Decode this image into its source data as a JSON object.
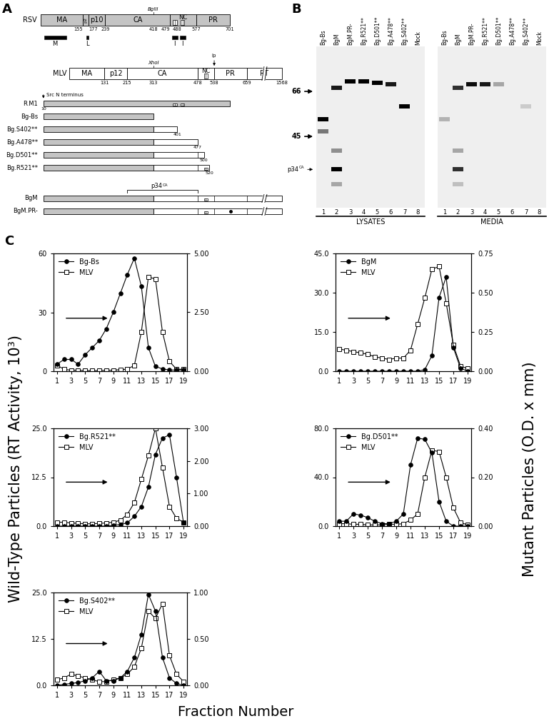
{
  "panel_A": {
    "label": "A",
    "construct_start": 10,
    "src_note": "Src N terminus",
    "rsv": {
      "name": "RSV",
      "domains": [
        {
          "name": "MA",
          "start": 1,
          "end": 155
        },
        {
          "name": "p2",
          "start": 155,
          "end": 177
        },
        {
          "name": "p10",
          "start": 177,
          "end": 239
        },
        {
          "name": "CA",
          "start": 239,
          "end": 479
        },
        {
          "name": "NC",
          "start": 479,
          "end": 577
        },
        {
          "name": "PR",
          "start": 577,
          "end": 701
        }
      ],
      "numbers": [
        155,
        177,
        239,
        418,
        479,
        488,
        577,
        701
      ],
      "site": {
        "name": "BglII",
        "position": 418
      },
      "zinc_fingers": [
        [
          490,
          505
        ],
        [
          518,
          533
        ]
      ],
      "regions": [
        {
          "name": "M",
          "start": 12,
          "end": 95
        },
        {
          "name": "L",
          "start": 170,
          "end": 178
        },
        {
          "name": "I",
          "start": 486,
          "end": 508
        },
        {
          "name": "I",
          "start": 516,
          "end": 536
        }
      ]
    },
    "mlv": {
      "name": "MLV",
      "domains": [
        {
          "name": "MA",
          "start": 1,
          "end": 131
        },
        {
          "name": "p12",
          "start": 131,
          "end": 215
        },
        {
          "name": "CA",
          "start": 215,
          "end": 478
        },
        {
          "name": "NC",
          "start": 478,
          "end": 538
        },
        {
          "name": "PR",
          "start": 538,
          "end": 659
        },
        {
          "name": "RT",
          "start": 659,
          "end": 1568
        }
      ],
      "numbers": [
        131,
        215,
        313,
        478,
        538,
        659,
        1568
      ],
      "site": {
        "name": "XhoI",
        "position": 313
      },
      "cleavage": {
        "name": "lp",
        "position": 538
      },
      "zinc_fingers": [
        [
          500,
          514
        ]
      ]
    },
    "p34": {
      "text": "p34",
      "sup": "CA",
      "start": 215,
      "end": 478
    },
    "constructs": [
      {
        "name": "R.M1",
        "rsv_end": 701,
        "mlv_end": null,
        "print_end": false
      },
      {
        "name": "Bg-Bs",
        "rsv_end": 418,
        "mlv_end": null,
        "print_end": false
      },
      {
        "name": "Bg.S402**",
        "rsv_end": 418,
        "mlv_end": 401,
        "print_end": true
      },
      {
        "name": "Bg.A478**",
        "rsv_end": 418,
        "mlv_end": 477,
        "print_end": true
      },
      {
        "name": "Bg.D501**",
        "rsv_end": 418,
        "mlv_end": 500,
        "print_end": true
      },
      {
        "name": "Bg.R521**",
        "rsv_end": 418,
        "mlv_end": 520,
        "print_end": true
      },
      {
        "name": "BgM",
        "rsv_end": 418,
        "mlv_end": 1568,
        "print_end": false
      },
      {
        "name": "BgM.PR-",
        "rsv_end": 418,
        "mlv_end": 1568,
        "print_end": false,
        "mutation": "PR"
      }
    ]
  },
  "panel_B": {
    "label": "B",
    "lanes": [
      "Bg-Bs",
      "BgM",
      "BgM.PR-",
      "Bg.R521**",
      "Bg.D501**",
      "Bg.A478**",
      "Bg.S402**",
      "Mock"
    ],
    "lane_numbers": [
      1,
      2,
      3,
      4,
      5,
      6,
      7,
      8
    ],
    "mw_range": [
      25,
      95
    ],
    "markers": [
      {
        "value": 66,
        "label": "66"
      },
      {
        "value": 45,
        "label": "45"
      },
      {
        "value": 34,
        "label": {
          "text": "p34",
          "sup": "CA"
        }
      }
    ],
    "gels": [
      {
        "name": "LYSATES",
        "bands": [
          [
            {
              "mw": 52,
              "intensity": 1.0
            },
            {
              "mw": 47,
              "intensity": 0.5
            }
          ],
          [
            {
              "mw": 68,
              "intensity": 0.9
            },
            {
              "mw": 40,
              "intensity": 0.4
            },
            {
              "mw": 34,
              "intensity": 1.0
            },
            {
              "mw": 30,
              "intensity": 0.3
            }
          ],
          [
            {
              "mw": 72,
              "intensity": 1.0
            }
          ],
          [
            {
              "mw": 72,
              "intensity": 1.0
            }
          ],
          [
            {
              "mw": 71,
              "intensity": 1.0
            }
          ],
          [
            {
              "mw": 70,
              "intensity": 0.9
            }
          ],
          [
            {
              "mw": 58,
              "intensity": 1.0
            }
          ],
          []
        ]
      },
      {
        "name": "MEDIA",
        "bands": [
          [
            {
              "mw": 52,
              "intensity": 0.25
            }
          ],
          [
            {
              "mw": 68,
              "intensity": 0.8
            },
            {
              "mw": 40,
              "intensity": 0.3
            },
            {
              "mw": 34,
              "intensity": 0.8
            },
            {
              "mw": 30,
              "intensity": 0.2
            }
          ],
          [
            {
              "mw": 70,
              "intensity": 0.95
            }
          ],
          [
            {
              "mw": 70,
              "intensity": 0.9
            }
          ],
          [
            {
              "mw": 70,
              "intensity": 0.3
            }
          ],
          [],
          [
            {
              "mw": 58,
              "intensity": 0.15
            }
          ],
          []
        ]
      }
    ]
  },
  "panel_C": {
    "label": "C",
    "ylabel_left": "Wild-Type Particles (RT Activity, 10³)",
    "ylabel_right": "Mutant Particles (O.D. x mm)",
    "xlabel": "Fraction Number"
  },
  "chart_data": [
    {
      "type": "line",
      "legend": "upper left",
      "x": [
        1,
        2,
        3,
        4,
        5,
        6,
        7,
        8,
        9,
        10,
        11,
        12,
        13,
        14,
        15,
        16,
        17,
        18,
        19
      ],
      "xlim": [
        0.5,
        19.5
      ],
      "xticks": [
        1,
        3,
        5,
        7,
        9,
        11,
        13,
        15,
        17,
        19
      ],
      "ylim": [
        0,
        60
      ],
      "yticks": [
        0,
        30,
        60
      ],
      "y2lim": [
        0,
        5
      ],
      "y2ticks": [
        {
          "value": 0,
          "label": "0.00"
        },
        {
          "value": 2.5,
          "label": "2.50"
        },
        {
          "value": 5,
          "label": "5.00"
        }
      ],
      "series": [
        {
          "name": "Bg-Bs",
          "axis": "y2",
          "color": "#000000",
          "marker": "circle",
          "line_style": "solid",
          "values": [
            0.3,
            0.5,
            0.5,
            0.3,
            0.7,
            1.0,
            1.3,
            1.8,
            2.5,
            3.3,
            4.1,
            4.8,
            3.6,
            1.0,
            0.2,
            0.1,
            0.05,
            0.05,
            0.05
          ]
        },
        {
          "name": "MLV",
          "color": "#000000",
          "marker": "open_square",
          "line_style": "solid",
          "values": [
            3,
            1,
            0.5,
            0.5,
            0.3,
            0.3,
            0.3,
            0.5,
            0.5,
            0.8,
            1,
            3,
            20,
            48,
            47,
            20,
            5,
            1,
            1
          ]
        }
      ]
    },
    {
      "type": "line",
      "legend": "upper left",
      "x": [
        1,
        2,
        3,
        4,
        5,
        6,
        7,
        8,
        9,
        10,
        11,
        12,
        13,
        14,
        15,
        16,
        17,
        18,
        19
      ],
      "xlim": [
        0.5,
        19.5
      ],
      "xticks": [
        1,
        3,
        5,
        7,
        9,
        11,
        13,
        15,
        17,
        19
      ],
      "ylim": [
        0,
        45
      ],
      "yticks": [
        {
          "value": 0,
          "label": "0.0"
        },
        {
          "value": 15,
          "label": "15.0"
        },
        {
          "value": 30,
          "label": "30.0"
        },
        {
          "value": 45,
          "label": "45.0"
        }
      ],
      "y2lim": [
        0,
        0.75
      ],
      "y2ticks": [
        {
          "value": 0,
          "label": "0.00"
        },
        {
          "value": 0.25,
          "label": "0.25"
        },
        {
          "value": 0.5,
          "label": "0.50"
        },
        {
          "value": 0.75,
          "label": "0.75"
        }
      ],
      "series": [
        {
          "name": "BgM",
          "axis": "y2",
          "color": "#000000",
          "marker": "circle",
          "line_style": "solid",
          "values": [
            0,
            0,
            0,
            0,
            0,
            0,
            0,
            0,
            0,
            0,
            0,
            0,
            0.01,
            0.1,
            0.47,
            0.6,
            0.15,
            0.02,
            0
          ]
        },
        {
          "name": "MLV",
          "color": "#000000",
          "marker": "open_square",
          "line_style": "solid",
          "values": [
            8.5,
            8,
            7.5,
            7,
            6.5,
            5.5,
            5,
            4.5,
            5,
            5,
            8,
            18,
            28,
            39,
            40,
            26,
            10,
            2,
            1
          ]
        }
      ]
    },
    {
      "type": "line",
      "legend": "upper left",
      "x": [
        1,
        2,
        3,
        4,
        5,
        6,
        7,
        8,
        9,
        10,
        11,
        12,
        13,
        14,
        15,
        16,
        17,
        18,
        19
      ],
      "xlim": [
        0.5,
        19.5
      ],
      "xticks": [
        1,
        3,
        5,
        7,
        9,
        11,
        13,
        15,
        17,
        19
      ],
      "ylim": [
        0,
        25
      ],
      "yticks": [
        {
          "value": 0,
          "label": "0.0"
        },
        {
          "value": 12.5,
          "label": "12.5"
        },
        {
          "value": 25,
          "label": "25.0"
        }
      ],
      "y2lim": [
        0,
        3
      ],
      "y2ticks": [
        {
          "value": 0,
          "label": "0.00"
        },
        {
          "value": 1,
          "label": "1.00"
        },
        {
          "value": 2,
          "label": "2.00"
        },
        {
          "value": 3,
          "label": "3.00"
        }
      ],
      "series": [
        {
          "name": "Bg.R521**",
          "axis": "y2",
          "color": "#000000",
          "marker": "circle",
          "line_style": "solid",
          "values": [
            0,
            0,
            0,
            0,
            0,
            0,
            0,
            0,
            0.02,
            0.05,
            0.1,
            0.3,
            0.6,
            1.2,
            2.2,
            2.7,
            2.8,
            1.5,
            0.1
          ]
        },
        {
          "name": "MLV",
          "color": "#000000",
          "marker": "open_square",
          "line_style": "solid",
          "values": [
            1,
            1,
            0.8,
            0.7,
            0.6,
            0.6,
            0.7,
            0.8,
            1,
            1.5,
            3,
            6,
            12,
            18,
            25,
            15,
            5,
            2,
            1
          ]
        }
      ]
    },
    {
      "type": "line",
      "legend": "upper left",
      "x": [
        1,
        2,
        3,
        4,
        5,
        6,
        7,
        8,
        9,
        10,
        11,
        12,
        13,
        14,
        15,
        16,
        17,
        18,
        19
      ],
      "xlim": [
        0.5,
        19.5
      ],
      "xticks": [
        1,
        3,
        5,
        7,
        9,
        11,
        13,
        15,
        17,
        19
      ],
      "ylim": [
        0,
        80
      ],
      "yticks": [
        {
          "value": 0,
          "label": "0.0"
        },
        {
          "value": 40,
          "label": "40.0"
        },
        {
          "value": 80,
          "label": "80.0"
        }
      ],
      "y2lim": [
        0,
        0.4
      ],
      "y2ticks": [
        {
          "value": 0,
          "label": "0.00"
        },
        {
          "value": 0.2,
          "label": "0.20"
        },
        {
          "value": 0.4,
          "label": "0.40"
        }
      ],
      "series": [
        {
          "name": "Bg.D501**",
          "axis": "y2",
          "color": "#000000",
          "marker": "circle",
          "line_style": "solid",
          "values": [
            0.02,
            0.02,
            0.05,
            0.045,
            0.035,
            0.02,
            0.01,
            0.01,
            0.02,
            0.05,
            0.25,
            0.36,
            0.355,
            0.3,
            0.1,
            0.02,
            0,
            0,
            0
          ]
        },
        {
          "name": "MLV",
          "color": "#000000",
          "marker": "open_square",
          "line_style": "solid",
          "values": [
            2,
            2,
            1.5,
            1.5,
            1,
            1,
            1,
            1.5,
            1.5,
            2,
            5,
            10,
            40,
            62,
            61,
            40,
            15,
            3,
            1
          ]
        }
      ]
    },
    {
      "type": "line",
      "legend": "upper left",
      "x": [
        1,
        2,
        3,
        4,
        5,
        6,
        7,
        8,
        9,
        10,
        11,
        12,
        13,
        14,
        15,
        16,
        17,
        18,
        19
      ],
      "xlim": [
        0.5,
        19.5
      ],
      "xticks": [
        1,
        3,
        5,
        7,
        9,
        11,
        13,
        15,
        17,
        19
      ],
      "ylim": [
        0,
        25
      ],
      "yticks": [
        {
          "value": 0,
          "label": "0.0"
        },
        {
          "value": 12.5,
          "label": "12.5"
        },
        {
          "value": 25,
          "label": "25.0"
        }
      ],
      "y2lim": [
        0,
        1
      ],
      "y2ticks": [
        {
          "value": 0,
          "label": "0.00"
        },
        {
          "value": 0.5,
          "label": "0.50"
        },
        {
          "value": 1,
          "label": "1.00"
        }
      ],
      "series": [
        {
          "name": "Bg.S402**",
          "axis": "y2",
          "color": "#000000",
          "marker": "circle",
          "line_style": "solid",
          "values": [
            0,
            0.01,
            0.02,
            0.03,
            0.05,
            0.08,
            0.15,
            0.05,
            0.05,
            0.08,
            0.15,
            0.3,
            0.55,
            0.98,
            0.8,
            0.3,
            0.08,
            0.02,
            0
          ]
        },
        {
          "name": "MLV",
          "color": "#000000",
          "marker": "open_square",
          "line_style": "solid",
          "values": [
            1.5,
            2,
            3,
            2.5,
            2,
            1.5,
            1,
            1,
            1.5,
            2,
            3,
            5,
            10,
            20,
            18,
            22,
            8,
            3,
            1
          ]
        }
      ]
    }
  ]
}
